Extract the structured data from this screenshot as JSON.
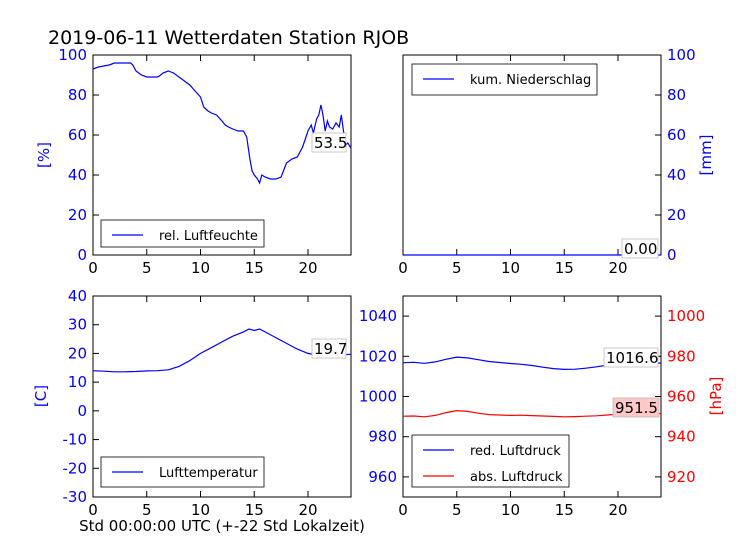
{
  "title": "2019-06-11 Wetterdaten Station RJOB",
  "xlabel": "Std 00:00:00 UTC (+-22 Std Lokalzeit)",
  "colors": {
    "blue": "#0000ff",
    "red": "#ff0000",
    "highlight": "#ffc8c8"
  },
  "chart_data": [
    {
      "type": "line",
      "panel": "top-left",
      "ylabel": "[%]",
      "xlim": [
        0,
        24
      ],
      "ylim": [
        0,
        100
      ],
      "xticks": [
        0,
        5,
        10,
        15,
        20
      ],
      "yticks": [
        0,
        20,
        40,
        60,
        80,
        100
      ],
      "legend": "lower-left",
      "annotation": "53.5",
      "series": [
        {
          "name": "rel. Luftfeuchte",
          "color": "#0000ff",
          "points": [
            [
              0,
              93
            ],
            [
              0.5,
              94
            ],
            [
              1,
              94.5
            ],
            [
              1.5,
              95
            ],
            [
              2,
              96
            ],
            [
              2.5,
              96
            ],
            [
              3,
              96
            ],
            [
              3.5,
              96
            ],
            [
              3.7,
              95
            ],
            [
              4,
              92
            ],
            [
              4.5,
              90
            ],
            [
              5,
              89
            ],
            [
              5.5,
              89
            ],
            [
              6,
              89
            ],
            [
              6.3,
              90
            ],
            [
              6.5,
              91
            ],
            [
              7,
              92
            ],
            [
              7.5,
              91
            ],
            [
              8,
              89
            ],
            [
              8.5,
              87
            ],
            [
              9,
              85
            ],
            [
              9.5,
              82
            ],
            [
              10,
              79
            ],
            [
              10.3,
              74
            ],
            [
              10.7,
              72
            ],
            [
              11,
              71
            ],
            [
              11.5,
              70
            ],
            [
              12,
              67
            ],
            [
              12.3,
              65
            ],
            [
              12.6,
              64
            ],
            [
              13,
              63
            ],
            [
              13.5,
              62
            ],
            [
              14,
              62
            ],
            [
              14.3,
              59
            ],
            [
              14.6,
              48
            ],
            [
              14.8,
              42
            ],
            [
              15,
              40
            ],
            [
              15.3,
              38
            ],
            [
              15.5,
              36
            ],
            [
              15.7,
              40
            ],
            [
              16,
              39
            ],
            [
              16.5,
              38
            ],
            [
              17,
              38
            ],
            [
              17.5,
              39
            ],
            [
              18,
              46
            ],
            [
              18.5,
              48
            ],
            [
              19,
              49
            ],
            [
              19.5,
              54
            ],
            [
              20,
              62
            ],
            [
              20.3,
              65
            ],
            [
              20.5,
              61
            ],
            [
              20.8,
              68
            ],
            [
              21,
              70
            ],
            [
              21.2,
              75
            ],
            [
              21.4,
              70
            ],
            [
              21.6,
              62
            ],
            [
              21.8,
              67
            ],
            [
              22,
              64
            ],
            [
              22.3,
              63
            ],
            [
              22.6,
              66
            ],
            [
              22.9,
              64
            ],
            [
              23.1,
              70
            ],
            [
              23.3,
              62
            ],
            [
              23.5,
              55
            ],
            [
              23.7,
              56
            ],
            [
              24,
              53.5
            ]
          ]
        }
      ]
    },
    {
      "type": "line",
      "panel": "top-right",
      "ylabel": "[mm]",
      "xlim": [
        0,
        24
      ],
      "ylim": [
        0,
        100
      ],
      "xticks": [
        0,
        5,
        10,
        15,
        20
      ],
      "yticks": [
        0,
        20,
        40,
        60,
        80,
        100
      ],
      "legend": "upper-left",
      "annotation": "0.00",
      "series": [
        {
          "name": "kum. Niederschlag",
          "color": "#0000ff",
          "points": [
            [
              0,
              0
            ],
            [
              24,
              0
            ]
          ]
        }
      ]
    },
    {
      "type": "line",
      "panel": "bottom-left",
      "ylabel": "[C]",
      "xlim": [
        0,
        24
      ],
      "ylim": [
        -30,
        40
      ],
      "xticks": [
        0,
        5,
        10,
        15,
        20
      ],
      "yticks": [
        -30,
        -20,
        -10,
        0,
        10,
        20,
        30,
        40
      ],
      "legend": "lower-left",
      "annotation": "19.7",
      "series": [
        {
          "name": "Lufttemperatur",
          "color": "#0000ff",
          "points": [
            [
              0,
              14
            ],
            [
              1,
              13.8
            ],
            [
              2,
              13.6
            ],
            [
              3,
              13.6
            ],
            [
              4,
              13.7
            ],
            [
              5,
              13.9
            ],
            [
              6,
              14
            ],
            [
              7,
              14.3
            ],
            [
              8,
              15.5
            ],
            [
              9,
              17.5
            ],
            [
              10,
              20
            ],
            [
              11,
              22
            ],
            [
              12,
              24
            ],
            [
              13,
              26
            ],
            [
              14,
              27.5
            ],
            [
              14.5,
              28.5
            ],
            [
              15,
              28
            ],
            [
              15.5,
              28.5
            ],
            [
              16,
              27.5
            ],
            [
              17,
              25.5
            ],
            [
              18,
              23.5
            ],
            [
              19,
              21.5
            ],
            [
              20,
              20
            ],
            [
              21,
              19.3
            ],
            [
              22,
              19
            ],
            [
              23,
              19.5
            ],
            [
              24,
              19.7
            ]
          ]
        }
      ]
    },
    {
      "type": "line",
      "panel": "bottom-right",
      "ylabel": "[hPa]",
      "xlim": [
        0,
        24
      ],
      "ylim_left": [
        950,
        1050
      ],
      "ylim_right": [
        910,
        1010
      ],
      "xticks": [
        0,
        5,
        10,
        15,
        20
      ],
      "yticks_left": [
        960,
        980,
        1000,
        1020,
        1040
      ],
      "yticks_right": [
        920,
        940,
        960,
        980,
        1000
      ],
      "legend": "lower-left",
      "annotations": [
        "1016.6",
        "951.5"
      ],
      "series": [
        {
          "name": "red. Luftdruck",
          "axis": "left",
          "color": "#0000ff",
          "points": [
            [
              0,
              1016.8
            ],
            [
              1,
              1017
            ],
            [
              2,
              1016.5
            ],
            [
              3,
              1017.2
            ],
            [
              4,
              1018.5
            ],
            [
              5,
              1019.6
            ],
            [
              6,
              1019.2
            ],
            [
              7,
              1018.3
            ],
            [
              8,
              1017.4
            ],
            [
              9,
              1016.9
            ],
            [
              10,
              1016.4
            ],
            [
              11,
              1016
            ],
            [
              12,
              1015.4
            ],
            [
              13,
              1014.6
            ],
            [
              14,
              1013.9
            ],
            [
              15,
              1013.5
            ],
            [
              16,
              1013.6
            ],
            [
              17,
              1014.1
            ],
            [
              18,
              1014.8
            ],
            [
              19,
              1015.6
            ],
            [
              20,
              1016.2
            ],
            [
              21,
              1016.5
            ],
            [
              22,
              1016.6
            ],
            [
              23,
              1016.7
            ],
            [
              24,
              1016.6
            ]
          ]
        },
        {
          "name": "abs. Luftdruck",
          "axis": "right",
          "color": "#ff0000",
          "points": [
            [
              0,
              950.2
            ],
            [
              1,
              950.3
            ],
            [
              2,
              949.9
            ],
            [
              3,
              950.6
            ],
            [
              4,
              952
            ],
            [
              5,
              953
            ],
            [
              6,
              952.6
            ],
            [
              7,
              951.7
            ],
            [
              8,
              951
            ],
            [
              9,
              950.8
            ],
            [
              10,
              950.6
            ],
            [
              11,
              950.7
            ],
            [
              12,
              950.5
            ],
            [
              13,
              950.3
            ],
            [
              14,
              950.1
            ],
            [
              15,
              949.9
            ],
            [
              16,
              950
            ],
            [
              17,
              950.2
            ],
            [
              18,
              950.4
            ],
            [
              19,
              950.8
            ],
            [
              20,
              951.2
            ],
            [
              21,
              951.4
            ],
            [
              22,
              951.5
            ],
            [
              23,
              951.6
            ],
            [
              24,
              951.5
            ]
          ]
        }
      ]
    }
  ]
}
